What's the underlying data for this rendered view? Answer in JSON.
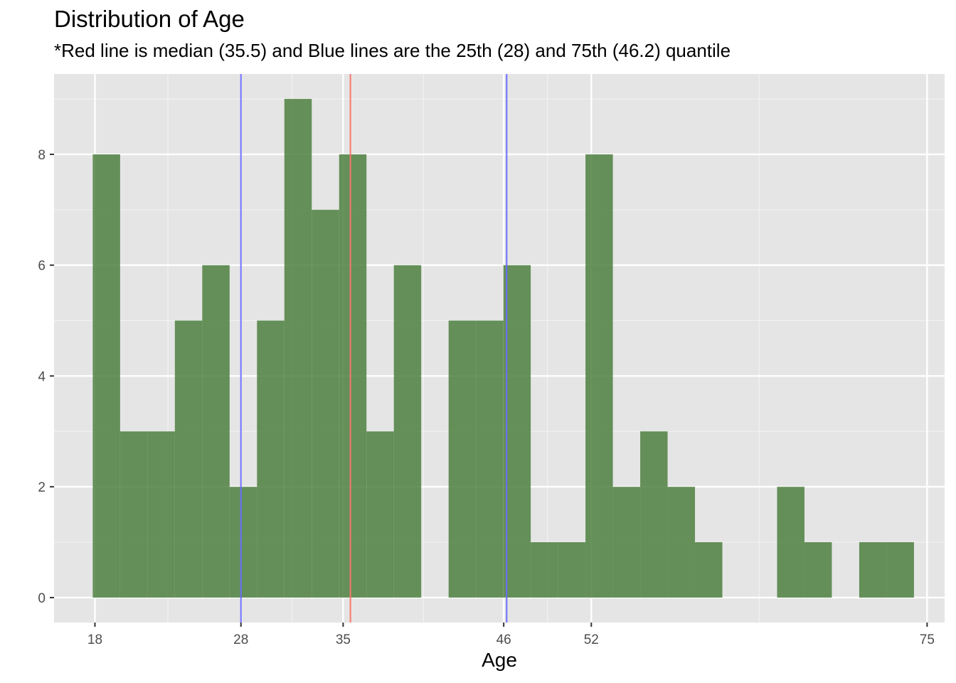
{
  "chart_data": {
    "type": "bar",
    "title": "Distribution of Age",
    "subtitle": "*Red line is median (35.5) and Blue lines are the 25th (28) and 75th (46.2) quantile",
    "xlabel": "Age",
    "ylabel": "",
    "x_ticks": [
      18,
      28,
      35,
      46,
      52,
      75
    ],
    "x_minor_gridlines": [
      23,
      31.5,
      40.5,
      49,
      63.5
    ],
    "y_ticks": [
      0,
      2,
      4,
      6,
      8
    ],
    "xlim": [
      15.2,
      76.2
    ],
    "ylim": [
      -0.45,
      9.45
    ],
    "bin_width": 1.875,
    "bins": [
      {
        "start": 17.85,
        "count": 8
      },
      {
        "start": 19.725,
        "count": 3
      },
      {
        "start": 21.6,
        "count": 3
      },
      {
        "start": 23.475,
        "count": 5
      },
      {
        "start": 25.35,
        "count": 6
      },
      {
        "start": 27.225,
        "count": 2
      },
      {
        "start": 29.1,
        "count": 5
      },
      {
        "start": 30.975,
        "count": 9
      },
      {
        "start": 32.85,
        "count": 7
      },
      {
        "start": 34.725,
        "count": 8
      },
      {
        "start": 36.6,
        "count": 3
      },
      {
        "start": 38.475,
        "count": 6
      },
      {
        "start": 40.35,
        "count": 0
      },
      {
        "start": 42.225,
        "count": 5
      },
      {
        "start": 44.1,
        "count": 5
      },
      {
        "start": 45.975,
        "count": 6
      },
      {
        "start": 47.85,
        "count": 1
      },
      {
        "start": 49.725,
        "count": 1
      },
      {
        "start": 51.6,
        "count": 8
      },
      {
        "start": 53.475,
        "count": 2
      },
      {
        "start": 55.35,
        "count": 3
      },
      {
        "start": 57.225,
        "count": 2
      },
      {
        "start": 59.1,
        "count": 1
      },
      {
        "start": 60.975,
        "count": 0
      },
      {
        "start": 62.85,
        "count": 0
      },
      {
        "start": 64.725,
        "count": 2
      },
      {
        "start": 66.6,
        "count": 1
      },
      {
        "start": 68.475,
        "count": 0
      },
      {
        "start": 70.35,
        "count": 1
      },
      {
        "start": 72.225,
        "count": 1
      }
    ],
    "reference_lines": [
      {
        "value": 35.5,
        "color": "#f8766d"
      },
      {
        "value": 28,
        "color": "#6a6aff"
      },
      {
        "value": 46.2,
        "color": "#6a6aff"
      }
    ],
    "bar_color": "#4d8040",
    "panel_color": "#e5e5e5",
    "grid": true,
    "legend": "none"
  }
}
